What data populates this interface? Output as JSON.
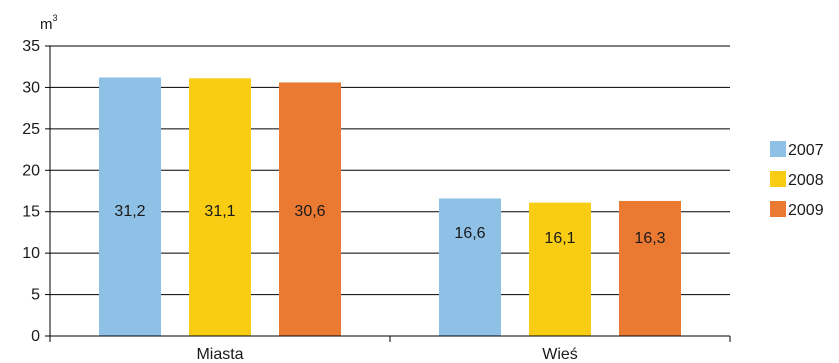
{
  "chart_data": {
    "type": "bar",
    "title": "",
    "xlabel": "",
    "ylabel": "m",
    "ylabel_superscript": "3",
    "categories": [
      "Miasta",
      "Wieś"
    ],
    "series": [
      {
        "name": "2007",
        "values": [
          31.2,
          16.6
        ],
        "labels": [
          "31,2",
          "16,6"
        ],
        "color": "#8fc1e6"
      },
      {
        "name": "2008",
        "values": [
          31.1,
          16.1
        ],
        "labels": [
          "31,1",
          "16,1"
        ],
        "color": "#f9cd14"
      },
      {
        "name": "2009",
        "values": [
          30.6,
          16.3
        ],
        "labels": [
          "30,6",
          "16,3"
        ],
        "color": "#ea7931"
      }
    ],
    "ylim": [
      0,
      35
    ],
    "yticks": [
      0,
      5,
      10,
      15,
      20,
      25,
      30,
      35
    ],
    "ytick_labels": [
      "0",
      "5",
      "10",
      "15",
      "20",
      "25",
      "30",
      "35"
    ],
    "grid": true,
    "legend_position": "right"
  }
}
